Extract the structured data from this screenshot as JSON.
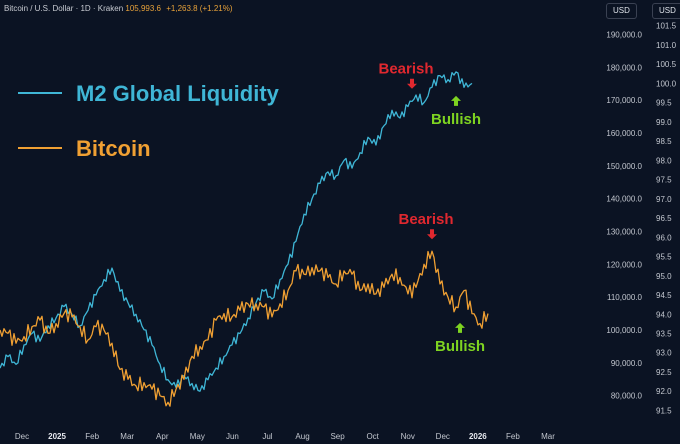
{
  "header": {
    "symbol": "Bitcoin / U.S. Dollar · 1D · Kraken",
    "price": "105,993.6",
    "change": "+1,263.8 (+1.21%)"
  },
  "currency_left": "USD",
  "currency_right": "USD",
  "colors": {
    "background": "#0b1323",
    "m2": "#3fb6d6",
    "bitcoin": "#f0a033",
    "bearish": "#e0282f",
    "bullish": "#7ed321"
  },
  "chart_data": {
    "type": "line",
    "title": "",
    "x_ticks": [
      "Dec",
      "2025",
      "Feb",
      "Mar",
      "Apr",
      "May",
      "Jun",
      "Jul",
      "Aug",
      "Sep",
      "Oct",
      "Nov",
      "Dec",
      "2026",
      "Feb",
      "Mar"
    ],
    "x_tick_bold": [
      false,
      true,
      false,
      false,
      false,
      false,
      false,
      false,
      false,
      false,
      false,
      false,
      false,
      true,
      false,
      false
    ],
    "y_left_ticks": [
      "190,000.0",
      "180,000.0",
      "170,000.0",
      "160,000.0",
      "150,000.0",
      "140,000.0",
      "130,000.0",
      "120,000.0",
      "110,000.0",
      "100,000.0",
      "90,000.0",
      "80,000.0"
    ],
    "y_left_range": [
      72000,
      195000
    ],
    "y_right_ticks": [
      "101.5",
      "101.0",
      "100.5",
      "100.0",
      "99.5",
      "99.0",
      "98.5",
      "98.0",
      "97.5",
      "97.0",
      "96.5",
      "96.0",
      "95.5",
      "95.0",
      "94.5",
      "94.0",
      "93.5",
      "93.0",
      "92.5",
      "92.0",
      "91.5"
    ],
    "y_right_range": [
      91.2,
      101.7
    ],
    "legend_placement": "top-left",
    "series": [
      {
        "name": "M2 Global Liquidity",
        "axis": "right",
        "color": "#3fb6d6",
        "points": [
          [
            0,
            92.6
          ],
          [
            2,
            92.9
          ],
          [
            4,
            92.7
          ],
          [
            6,
            93.2
          ],
          [
            8,
            93.5
          ],
          [
            10,
            93.3
          ],
          [
            12,
            93.7
          ],
          [
            14,
            93.9
          ],
          [
            16,
            94.2
          ],
          [
            18,
            94.0
          ],
          [
            20,
            93.7
          ],
          [
            22,
            94.1
          ],
          [
            24,
            94.5
          ],
          [
            26,
            94.9
          ],
          [
            28,
            95.2
          ],
          [
            30,
            94.6
          ],
          [
            32,
            94.3
          ],
          [
            34,
            94.0
          ],
          [
            36,
            93.6
          ],
          [
            38,
            93.2
          ],
          [
            40,
            92.7
          ],
          [
            42,
            92.3
          ],
          [
            44,
            92.1
          ],
          [
            46,
            92.4
          ],
          [
            48,
            92.2
          ],
          [
            50,
            92.0
          ],
          [
            52,
            92.3
          ],
          [
            54,
            92.6
          ],
          [
            56,
            92.9
          ],
          [
            58,
            93.2
          ],
          [
            60,
            93.5
          ],
          [
            62,
            93.9
          ],
          [
            64,
            94.3
          ],
          [
            66,
            94.6
          ],
          [
            68,
            94.4
          ],
          [
            70,
            94.9
          ],
          [
            72,
            95.3
          ],
          [
            74,
            95.9
          ],
          [
            76,
            96.6
          ],
          [
            78,
            97.0
          ],
          [
            80,
            97.4
          ],
          [
            82,
            97.7
          ],
          [
            84,
            97.6
          ],
          [
            86,
            98.0
          ],
          [
            88,
            97.8
          ],
          [
            90,
            98.2
          ],
          [
            92,
            98.6
          ],
          [
            94,
            98.4
          ],
          [
            96,
            98.9
          ],
          [
            98,
            99.3
          ],
          [
            100,
            99.1
          ],
          [
            102,
            99.4
          ],
          [
            104,
            99.7
          ],
          [
            106,
            99.5
          ],
          [
            108,
            99.9
          ],
          [
            110,
            100.2
          ],
          [
            112,
            100.1
          ],
          [
            114,
            100.3
          ],
          [
            116,
            99.9
          ],
          [
            118,
            100.0
          ]
        ]
      },
      {
        "name": "Bitcoin",
        "axis": "left",
        "color": "#f0a033",
        "points": [
          [
            0,
            100000
          ],
          [
            2,
            99000
          ],
          [
            4,
            96000
          ],
          [
            6,
            98000
          ],
          [
            8,
            101000
          ],
          [
            10,
            103000
          ],
          [
            12,
            99000
          ],
          [
            14,
            102000
          ],
          [
            16,
            105000
          ],
          [
            18,
            104000
          ],
          [
            20,
            101000
          ],
          [
            22,
            97000
          ],
          [
            24,
            101000
          ],
          [
            26,
            100000
          ],
          [
            28,
            96000
          ],
          [
            30,
            88000
          ],
          [
            32,
            85000
          ],
          [
            34,
            83000
          ],
          [
            36,
            84000
          ],
          [
            38,
            82000
          ],
          [
            40,
            80000
          ],
          [
            42,
            78000
          ],
          [
            44,
            82000
          ],
          [
            46,
            85000
          ],
          [
            48,
            92000
          ],
          [
            50,
            95000
          ],
          [
            52,
            97000
          ],
          [
            54,
            103000
          ],
          [
            56,
            105000
          ],
          [
            58,
            104000
          ],
          [
            60,
            106000
          ],
          [
            62,
            108000
          ],
          [
            64,
            108000
          ],
          [
            66,
            107000
          ],
          [
            68,
            104000
          ],
          [
            70,
            108000
          ],
          [
            72,
            112000
          ],
          [
            74,
            118000
          ],
          [
            76,
            117000
          ],
          [
            78,
            119000
          ],
          [
            80,
            118000
          ],
          [
            82,
            116000
          ],
          [
            84,
            114000
          ],
          [
            86,
            118000
          ],
          [
            88,
            117000
          ],
          [
            90,
            112000
          ],
          [
            92,
            114000
          ],
          [
            94,
            111000
          ],
          [
            96,
            113000
          ],
          [
            98,
            117000
          ],
          [
            100,
            116000
          ],
          [
            102,
            111000
          ],
          [
            104,
            113000
          ],
          [
            106,
            120000
          ],
          [
            108,
            124000
          ],
          [
            110,
            114000
          ],
          [
            112,
            110000
          ],
          [
            114,
            107000
          ],
          [
            116,
            112000
          ],
          [
            118,
            105000
          ],
          [
            120,
            102000
          ],
          [
            122,
            105000
          ]
        ]
      }
    ],
    "x_domain": [
      0,
      150
    ],
    "annotations": [
      {
        "id": "m2-bearish",
        "text": "Bearish",
        "kind": "bearish",
        "series": "M2 Global Liquidity",
        "x": 103
      },
      {
        "id": "m2-bullish",
        "text": "Bullish",
        "kind": "bullish",
        "series": "M2 Global Liquidity",
        "x": 114
      },
      {
        "id": "btc-bearish",
        "text": "Bearish",
        "kind": "bearish",
        "series": "Bitcoin",
        "x": 108
      },
      {
        "id": "btc-bullish",
        "text": "Bullish",
        "kind": "bullish",
        "series": "Bitcoin",
        "x": 115
      }
    ]
  }
}
